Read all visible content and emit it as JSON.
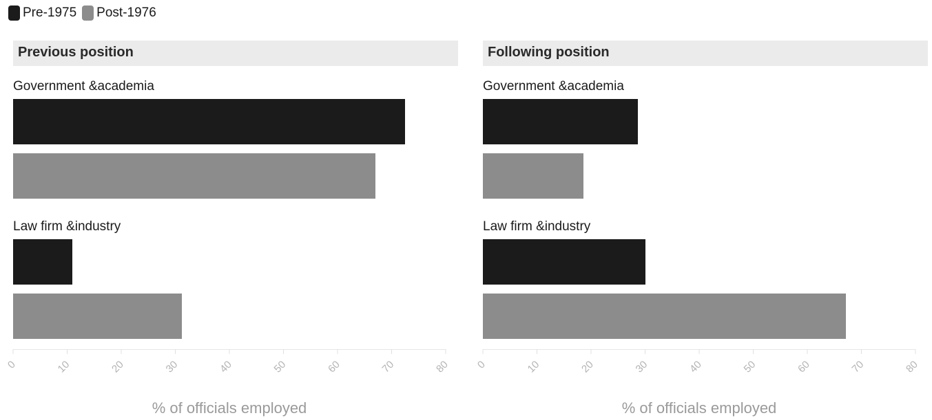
{
  "legend": [
    {
      "label": "Pre-1975",
      "color": "#1b1b1b"
    },
    {
      "label": "Post-1976",
      "color": "#8c8c8c"
    }
  ],
  "chart_data": [
    {
      "type": "bar",
      "orientation": "horizontal",
      "title": "Previous position",
      "categories": [
        "Government &academia",
        "Law firm &industry"
      ],
      "series": [
        {
          "name": "Pre-1975",
          "values": [
            72.5,
            11
          ]
        },
        {
          "name": "Post-1976",
          "values": [
            67,
            31.2
          ]
        }
      ],
      "xlabel": "% of officials employed",
      "xlim": [
        0,
        80
      ],
      "xticks": [
        "0",
        "10",
        "20",
        "30",
        "40",
        "50",
        "60",
        "70",
        "80"
      ]
    },
    {
      "type": "bar",
      "orientation": "horizontal",
      "title": "Following position",
      "categories": [
        "Government &academia",
        "Law firm &industry"
      ],
      "series": [
        {
          "name": "Pre-1975",
          "values": [
            28.7,
            30
          ]
        },
        {
          "name": "Post-1976",
          "values": [
            18.6,
            67.1
          ]
        }
      ],
      "xlabel": "% of officials employed",
      "xlim": [
        0,
        80
      ],
      "xticks": [
        "0",
        "10",
        "20",
        "30",
        "40",
        "50",
        "60",
        "70",
        "80"
      ]
    }
  ]
}
